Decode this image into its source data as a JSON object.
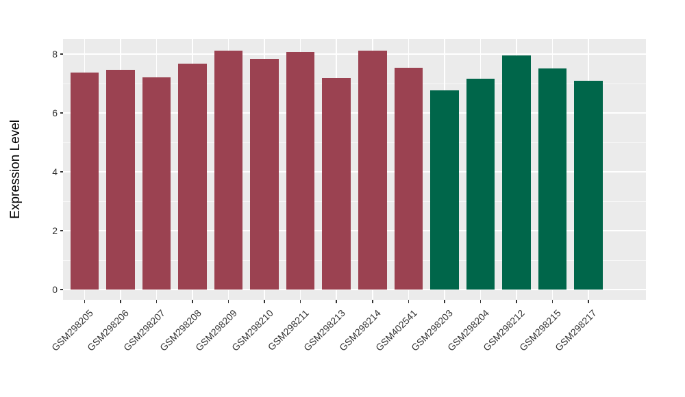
{
  "figure": {
    "background": "#FFFFFF"
  },
  "chart_data": {
    "type": "bar",
    "title": "",
    "xlabel": "",
    "ylabel": "Expression Level",
    "ylim": [
      0,
      8.5
    ],
    "yticks": [
      0,
      2,
      4,
      6,
      8
    ],
    "yticks_minor": [
      1,
      3,
      5,
      7
    ],
    "grid": "white major and minor horizontal lines plus vertical major lines on gray panel",
    "legend_position": "none",
    "panel_bg": "#EBEBEB",
    "grid_color": "#FFFFFF",
    "axis_text_color": "#333333",
    "group_colors": {
      "maroon_group": "#9B4251",
      "green_group": "#00664A"
    },
    "categories": [
      "GSM298205",
      "GSM298206",
      "GSM298207",
      "GSM298208",
      "GSM298209",
      "GSM298210",
      "GSM298211",
      "GSM298213",
      "GSM298214",
      "GSM402541",
      "GSM298203",
      "GSM298204",
      "GSM298212",
      "GSM298215",
      "GSM298217"
    ],
    "values": [
      7.37,
      7.46,
      7.2,
      7.67,
      8.11,
      7.84,
      8.07,
      7.18,
      8.11,
      7.53,
      6.77,
      7.17,
      7.95,
      7.51,
      7.1
    ],
    "bar_colors": [
      "#9B4251",
      "#9B4251",
      "#9B4251",
      "#9B4251",
      "#9B4251",
      "#9B4251",
      "#9B4251",
      "#9B4251",
      "#9B4251",
      "#9B4251",
      "#00664A",
      "#00664A",
      "#00664A",
      "#00664A",
      "#00664A"
    ]
  }
}
